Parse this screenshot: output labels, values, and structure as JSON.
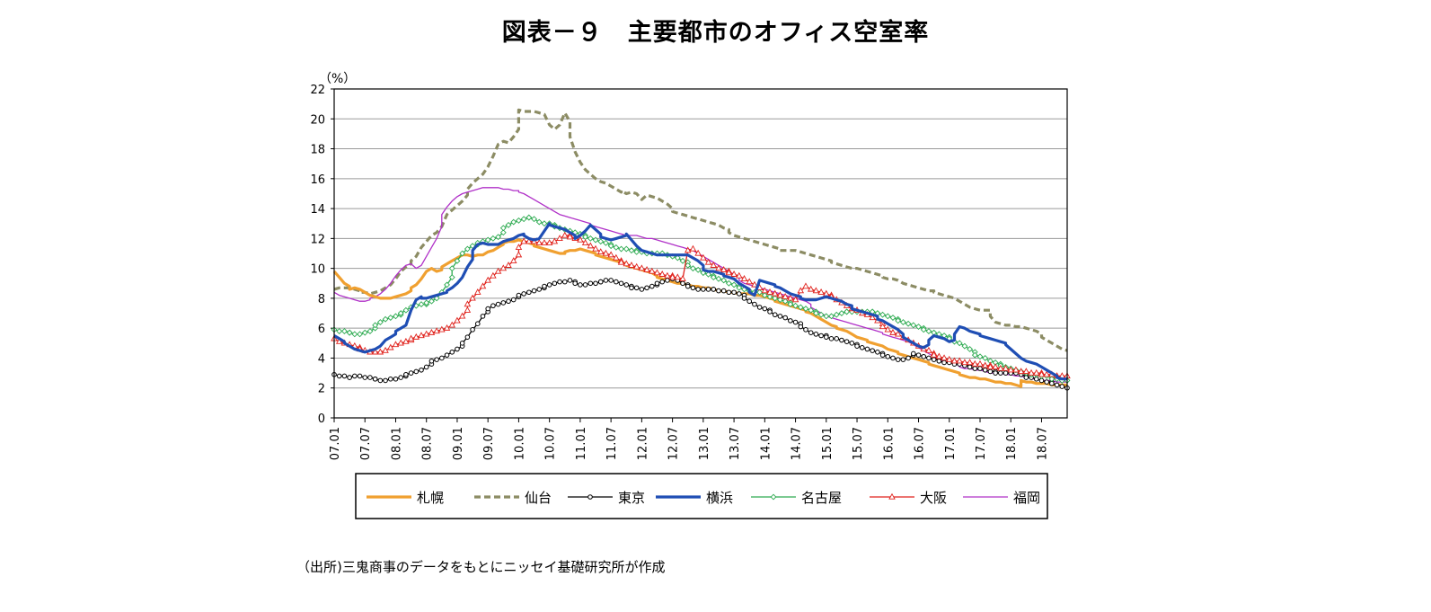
{
  "title": "図表－９　主要都市のオフィス空室率",
  "source": "（出所)三鬼商事のデータをもとにニッセイ基礎研究所が作成",
  "chart_data": {
    "type": "line",
    "title": "図表－９　主要都市のオフィス空室率",
    "ylabel": "（%）",
    "xlabel": "",
    "ylim": [
      0,
      22
    ],
    "yticks": [
      0,
      2,
      4,
      6,
      8,
      10,
      12,
      14,
      16,
      18,
      20,
      22
    ],
    "grid": true,
    "legend_position": "bottom",
    "x_labels": [
      "07.01",
      "07.07",
      "08.01",
      "08.07",
      "09.01",
      "09.07",
      "10.01",
      "10.07",
      "11.01",
      "11.07",
      "12.01",
      "12.07",
      "13.01",
      "13.07",
      "14.01",
      "14.07",
      "15.01",
      "15.07",
      "16.01",
      "16.07",
      "17.01",
      "17.07",
      "18.01",
      "18.07"
    ],
    "x_start": "2007-01",
    "x_end": "2018-12",
    "series": [
      {
        "name": "札幌",
        "color": "#F0A030",
        "style": "solid-thick",
        "marker": "none",
        "values": [
          9.8,
          9.4,
          9.0,
          8.8,
          8.6,
          8.7,
          8.6,
          8.4,
          8.2,
          8.1,
          8.0,
          8.0,
          8.0,
          8.0,
          8.1,
          8.2,
          8.3,
          8.5,
          8.7,
          8.9,
          9.3,
          9.8,
          10.0,
          9.8,
          9.9,
          10.1,
          10.3,
          10.5,
          10.7,
          10.9,
          10.9,
          10.8,
          10.8,
          10.9,
          10.9,
          11.1,
          11.2,
          11.4,
          11.6,
          11.7,
          11.8,
          11.8,
          11.9,
          11.8,
          11.7,
          11.6,
          11.5,
          11.4,
          11.3,
          11.2,
          11.1,
          11.0,
          11.0,
          11.1,
          11.2,
          11.2,
          11.3,
          11.2,
          11.1,
          11.0,
          10.9,
          10.8,
          10.7,
          10.6,
          10.5,
          10.4,
          10.3,
          10.2,
          10.1,
          10.0,
          9.9,
          9.8,
          9.7,
          9.5,
          9.4,
          9.3,
          9.2,
          9.1,
          9.0,
          9.0,
          8.9,
          8.9,
          8.8,
          8.8,
          8.7,
          8.7,
          8.6,
          8.6,
          8.5,
          8.5,
          8.4,
          8.4,
          8.3,
          8.3,
          8.3,
          8.3,
          8.2,
          8.2,
          8.1,
          8.0,
          7.9,
          7.8,
          7.7,
          7.6,
          7.5,
          7.4,
          7.3,
          7.2,
          7.1,
          7.0,
          6.8,
          6.6,
          6.4,
          6.2,
          6.1,
          6.0,
          5.9,
          5.8,
          5.6,
          5.4,
          5.3,
          5.2,
          5.1,
          5.0,
          4.9,
          4.8,
          4.6,
          4.5,
          4.4,
          4.3,
          4.2,
          4.1,
          4.0,
          3.9,
          3.8,
          3.7,
          3.6,
          3.5,
          3.4,
          3.3,
          3.2,
          3.1,
          3.0,
          2.9,
          2.8,
          2.7,
          2.7,
          2.6,
          2.6,
          2.5,
          2.5,
          2.4,
          2.4,
          2.3,
          2.3,
          2.2,
          2.1,
          2.5,
          2.4,
          2.4,
          2.3,
          2.3,
          2.3,
          2.2,
          2.2,
          2.2,
          2.2,
          2.2
        ]
      },
      {
        "name": "仙台",
        "color": "#8C8C64",
        "style": "dashed-thick",
        "marker": "none",
        "values": [
          8.6,
          8.7,
          8.7,
          8.7,
          8.6,
          8.5,
          8.4,
          8.4,
          8.3,
          8.4,
          8.5,
          8.7,
          8.9,
          9.3,
          9.8,
          10.1,
          10.3,
          10.5,
          10.8,
          11.4,
          11.8,
          12.2,
          12.4,
          12.8,
          13.6,
          13.9,
          14.2,
          14.5,
          14.9,
          15.3,
          15.7,
          16.0,
          16.3,
          16.8,
          17.5,
          18.3,
          18.5,
          18.4,
          18.8,
          19.3,
          20.6,
          20.5,
          20.5,
          20.5,
          20.4,
          20.3,
          19.6,
          19.3,
          19.6,
          20.4,
          19.8,
          18.8,
          17.8,
          17.1,
          16.6,
          16.3,
          16.0,
          15.8,
          15.7,
          15.5,
          15.3,
          15.1,
          15.2,
          15.0,
          15.1,
          15.0,
          14.6,
          14.9,
          14.8,
          14.7,
          14.5,
          14.3,
          14.0,
          13.8,
          13.7,
          13.6,
          13.5,
          13.4,
          13.3,
          13.2,
          13.1,
          13.0,
          12.9,
          12.7,
          12.6,
          12.4,
          12.2,
          12.1,
          12.0,
          11.9,
          11.8,
          11.7,
          11.6,
          11.5,
          11.4,
          11.3,
          11.2,
          11.2,
          11.2,
          11.2,
          11.1,
          11.0,
          10.9,
          10.8,
          10.7,
          10.6,
          10.5,
          10.4,
          10.3,
          10.2,
          10.1,
          10.0,
          10.0,
          9.9,
          9.8,
          9.7,
          9.6,
          9.5,
          9.4,
          9.3,
          9.3,
          9.2,
          9.0,
          8.9,
          8.8,
          8.7,
          8.6,
          8.5,
          8.5,
          8.4,
          8.3,
          8.2,
          8.1,
          8.0,
          7.8,
          7.6,
          7.4,
          7.3,
          7.2,
          7.2,
          7.2,
          6.8,
          6.4,
          6.3,
          6.2,
          6.2,
          6.1,
          6.1,
          6.0,
          5.9,
          5.8,
          5.6,
          5.4,
          5.2,
          5.0,
          4.8,
          4.6,
          4.5
        ]
      },
      {
        "name": "東京",
        "color": "#000000",
        "style": "solid-thin",
        "marker": "circle",
        "values": [
          2.9,
          2.8,
          2.8,
          2.7,
          2.7,
          2.8,
          2.8,
          2.7,
          2.7,
          2.6,
          2.6,
          2.5,
          2.5,
          2.6,
          2.6,
          2.7,
          2.8,
          2.9,
          3.0,
          3.1,
          3.2,
          3.4,
          3.6,
          3.8,
          3.9,
          4.0,
          4.2,
          4.4,
          4.6,
          4.8,
          5.0,
          5.4,
          5.9,
          6.3,
          6.8,
          7.1,
          7.3,
          7.5,
          7.6,
          7.7,
          7.8,
          7.9,
          8.1,
          8.2,
          8.3,
          8.4,
          8.5,
          8.6,
          8.7,
          8.8,
          8.9,
          9.0,
          9.1,
          9.1,
          9.2,
          9.1,
          9.0,
          8.9,
          8.9,
          9.0,
          9.0,
          9.1,
          9.1,
          9.2,
          9.2,
          9.1,
          9.0,
          8.9,
          8.8,
          8.7,
          8.7,
          8.6,
          8.7,
          8.8,
          8.9,
          9.0,
          9.1,
          9.2,
          9.3,
          9.2,
          9.0,
          8.9,
          8.8,
          8.7,
          8.6,
          8.6,
          8.6,
          8.6,
          8.6,
          8.5,
          8.5,
          8.4,
          8.4,
          8.3,
          8.2,
          8.0,
          7.8,
          7.6,
          7.4,
          7.3,
          7.2,
          7.1,
          6.9,
          6.8,
          6.7,
          6.5,
          6.4,
          6.3,
          6.1,
          5.9,
          5.7,
          5.6,
          5.5,
          5.5,
          5.4,
          5.3,
          5.3,
          5.2,
          5.1,
          5.0,
          4.9,
          4.8,
          4.7,
          4.6,
          4.5,
          4.4,
          4.3,
          4.2,
          4.1,
          4.0,
          3.9,
          3.9,
          4.0,
          4.2,
          4.3,
          4.2,
          4.1,
          4.0,
          3.9,
          3.9,
          3.8,
          3.7,
          3.7,
          3.6,
          3.6,
          3.5,
          3.5,
          3.4,
          3.3,
          3.3,
          3.2,
          3.1,
          3.1,
          3.0,
          3.0,
          3.0,
          3.0,
          3.0,
          2.9,
          2.8,
          2.7,
          2.7,
          2.6,
          2.5,
          2.4,
          2.4,
          2.3,
          2.2,
          2.1,
          2.0
        ]
      },
      {
        "name": "横浜",
        "color": "#1F4EB4",
        "style": "solid-thick",
        "marker": "none",
        "values": [
          5.5,
          5.3,
          5.1,
          5.0,
          4.8,
          4.6,
          4.5,
          4.4,
          4.5,
          4.5,
          4.6,
          4.8,
          5.2,
          5.4,
          5.6,
          5.8,
          6.0,
          6.2,
          7.2,
          7.9,
          8.1,
          8.0,
          8.0,
          8.1,
          8.2,
          8.3,
          8.4,
          8.5,
          8.7,
          9.0,
          9.4,
          10.1,
          10.6,
          11.2,
          11.6,
          11.7,
          11.6,
          11.6,
          11.6,
          11.6,
          11.8,
          11.9,
          12.0,
          12.2,
          12.3,
          12.2,
          12.0,
          11.9,
          12.0,
          12.5,
          13.0,
          12.9,
          12.8,
          12.7,
          12.6,
          12.4,
          12.2,
          12.0,
          12.2,
          12.5,
          12.9,
          12.6,
          12.3,
          12.1,
          12.0,
          11.9,
          12.0,
          12.1,
          12.2,
          12.3,
          11.9,
          11.5,
          11.2,
          11.1,
          11.0,
          11.0,
          10.9,
          10.9,
          10.9,
          10.9,
          10.9,
          10.9,
          10.9,
          10.9,
          10.7,
          10.5,
          10.2,
          9.9,
          9.8,
          9.8,
          9.7,
          9.6,
          9.5,
          9.4,
          9.3,
          9.0,
          8.8,
          8.6,
          8.4,
          8.2,
          9.2,
          9.1,
          9.0,
          8.9,
          8.8,
          8.7,
          8.5,
          8.3,
          8.2,
          8.1,
          8.0,
          7.9,
          7.9,
          7.9,
          8.0,
          8.1,
          8.1,
          8.0,
          7.9,
          7.8,
          7.6,
          7.5,
          7.3,
          7.2,
          7.1,
          7.0,
          6.9,
          6.8,
          6.6,
          6.5,
          6.3,
          6.1,
          5.9,
          5.6,
          5.4,
          5.2,
          5.0,
          4.8,
          4.7,
          4.9,
          5.2,
          5.5,
          5.4,
          5.3,
          5.1,
          5.2,
          5.6,
          6.1,
          6.0,
          5.8,
          5.7,
          5.6,
          5.5,
          5.4,
          5.3,
          5.2,
          5.1,
          5.0,
          4.9,
          4.6,
          4.3,
          4.0,
          3.8,
          3.7,
          3.7,
          3.6,
          3.4,
          3.2,
          3.0,
          2.8,
          2.7,
          2.6,
          2.6
        ]
      },
      {
        "name": "名古屋",
        "color": "#2DAA50",
        "style": "solid-thin",
        "marker": "diamond",
        "values": [
          5.9,
          5.8,
          5.8,
          5.7,
          5.7,
          5.6,
          5.6,
          5.7,
          5.8,
          6.0,
          6.2,
          6.4,
          6.6,
          6.7,
          6.8,
          6.9,
          7.0,
          7.2,
          7.4,
          7.5,
          7.6,
          7.6,
          7.7,
          7.8,
          8.0,
          8.4,
          8.9,
          9.4,
          10.0,
          10.5,
          11.0,
          11.3,
          11.5,
          11.6,
          11.7,
          11.8,
          11.9,
          12.0,
          12.1,
          12.4,
          12.7,
          12.9,
          13.1,
          13.2,
          13.3,
          13.4,
          13.4,
          13.3,
          13.1,
          13.0,
          13.0,
          12.9,
          12.8,
          12.7,
          12.6,
          12.5,
          12.4,
          12.3,
          12.2,
          12.1,
          12.0,
          11.9,
          11.8,
          11.7,
          11.6,
          11.5,
          11.4,
          11.3,
          11.3,
          11.2,
          11.2,
          11.1,
          11.1,
          11.0,
          11.0,
          11.0,
          11.0,
          11.0,
          10.9,
          10.8,
          10.7,
          10.5,
          10.4,
          10.2,
          10.0,
          9.9,
          9.7,
          9.6,
          9.5,
          9.4,
          9.3,
          9.2,
          9.0,
          8.9,
          8.8,
          8.7,
          8.6,
          8.5,
          8.4,
          8.4,
          8.3,
          8.2,
          8.1,
          8.0,
          7.9,
          7.8,
          7.7,
          7.6,
          7.5,
          7.4,
          7.3,
          7.2,
          7.1,
          7.0,
          6.9,
          6.8,
          6.8,
          6.9,
          7.0,
          7.1,
          7.1,
          7.1,
          7.1,
          7.1,
          7.1,
          7.1,
          7.1,
          7.0,
          6.9,
          6.8,
          6.7,
          6.6,
          6.5,
          6.4,
          6.3,
          6.2,
          6.1,
          6.0,
          5.9,
          5.8,
          5.7,
          5.6,
          5.5,
          5.4,
          5.3,
          5.1,
          5.0,
          4.8,
          4.6,
          4.4,
          4.2,
          4.1,
          4.0,
          3.8,
          3.7,
          3.6,
          3.5,
          3.4,
          3.3,
          3.2,
          3.1,
          3.0,
          3.0,
          2.9,
          2.9,
          2.8,
          2.8,
          2.7,
          2.6,
          2.6,
          2.5,
          2.5
        ]
      },
      {
        "name": "大阪",
        "color": "#E0221C",
        "style": "solid-thin",
        "marker": "triangle",
        "values": [
          5.3,
          5.1,
          5.0,
          4.9,
          4.8,
          4.7,
          4.6,
          4.5,
          4.4,
          4.4,
          4.4,
          4.5,
          4.7,
          4.9,
          5.0,
          5.1,
          5.2,
          5.3,
          5.4,
          5.5,
          5.6,
          5.7,
          5.8,
          5.9,
          6.0,
          6.2,
          6.5,
          6.8,
          7.2,
          7.6,
          8.0,
          8.4,
          8.8,
          9.2,
          9.5,
          9.8,
          10.0,
          10.2,
          10.5,
          10.9,
          11.4,
          11.8,
          11.8,
          11.8,
          11.7,
          11.7,
          11.7,
          11.8,
          12.0,
          12.2,
          12.2,
          12.1,
          12.0,
          11.9,
          11.7,
          11.5,
          11.3,
          11.1,
          11.0,
          10.9,
          10.7,
          10.5,
          10.4,
          10.3,
          10.2,
          10.1,
          10.0,
          9.9,
          9.8,
          9.7,
          9.6,
          9.5,
          9.5,
          9.4,
          9.4,
          9.3,
          11.2,
          11.3,
          11.0,
          10.7,
          10.4,
          10.2,
          10.0,
          9.9,
          9.8,
          9.7,
          9.6,
          9.5,
          9.3,
          9.1,
          8.9,
          8.7,
          8.5,
          8.4,
          8.3,
          8.2,
          8.2,
          8.1,
          8.0,
          7.9,
          8.5,
          8.8,
          8.6,
          8.5,
          8.4,
          8.3,
          8.2,
          8.1,
          7.9,
          7.7,
          7.5,
          7.3,
          7.2,
          7.0,
          6.9,
          6.7,
          6.5,
          6.3,
          6.1,
          5.9,
          5.7,
          5.6,
          5.4,
          5.2,
          5.0,
          4.8,
          4.6,
          4.5,
          4.3,
          4.2,
          4.1,
          4.0,
          3.9,
          3.8,
          3.8,
          3.7,
          3.7,
          3.6,
          3.6,
          3.5,
          3.5,
          3.4,
          3.4,
          3.3,
          3.3,
          3.2,
          3.2,
          3.1,
          3.1,
          3.0,
          3.0,
          3.0,
          2.9,
          2.9,
          2.9,
          2.8,
          2.8,
          2.8
        ]
      },
      {
        "name": "福岡",
        "color": "#B030C8",
        "style": "solid-thin",
        "marker": "none",
        "values": [
          8.4,
          8.2,
          8.1,
          8.0,
          7.9,
          7.8,
          7.8,
          7.9,
          8.0,
          8.1,
          8.3,
          8.6,
          9.0,
          9.5,
          9.9,
          10.2,
          10.3,
          10.0,
          10.2,
          10.8,
          11.4,
          12.0,
          12.8,
          13.6,
          14.1,
          14.5,
          14.8,
          15.0,
          15.1,
          15.2,
          15.3,
          15.4,
          15.4,
          15.4,
          15.4,
          15.3,
          15.3,
          15.2,
          15.2,
          15.1,
          15.0,
          14.8,
          14.6,
          14.4,
          14.2,
          14.0,
          13.8,
          13.6,
          13.5,
          13.4,
          13.3,
          13.2,
          13.1,
          13.0,
          12.9,
          12.8,
          12.7,
          12.6,
          12.5,
          12.4,
          12.3,
          12.2,
          12.2,
          12.2,
          12.1,
          12.0,
          12.0,
          11.9,
          11.8,
          11.8,
          11.7,
          11.6,
          11.5,
          11.4,
          11.3,
          11.2,
          11.0,
          10.8,
          10.6,
          10.4,
          10.2,
          10.0,
          9.8,
          9.6,
          9.4,
          9.2,
          9.0,
          8.9,
          8.8,
          8.7,
          8.6,
          8.5,
          8.4,
          8.3,
          8.2,
          8.1,
          8.0,
          7.9,
          7.8,
          7.6,
          7.4,
          7.2,
          7.0,
          6.8,
          6.7,
          6.6,
          6.5,
          6.4,
          6.3,
          6.2,
          6.1,
          6.0,
          5.9,
          5.8,
          5.7,
          5.6,
          5.5,
          5.4,
          5.3,
          5.2,
          5.1,
          4.9,
          4.7,
          4.5,
          4.3,
          4.1,
          3.9,
          3.8,
          3.7,
          3.6,
          3.5,
          3.4,
          3.3,
          3.3,
          3.2,
          3.2,
          3.1,
          3.0,
          3.0,
          3.0,
          2.9,
          2.9,
          2.8,
          2.8,
          2.7,
          2.7,
          2.6,
          2.6,
          2.5,
          2.5,
          2.5,
          2.4,
          2.4,
          2.4
        ]
      }
    ]
  }
}
